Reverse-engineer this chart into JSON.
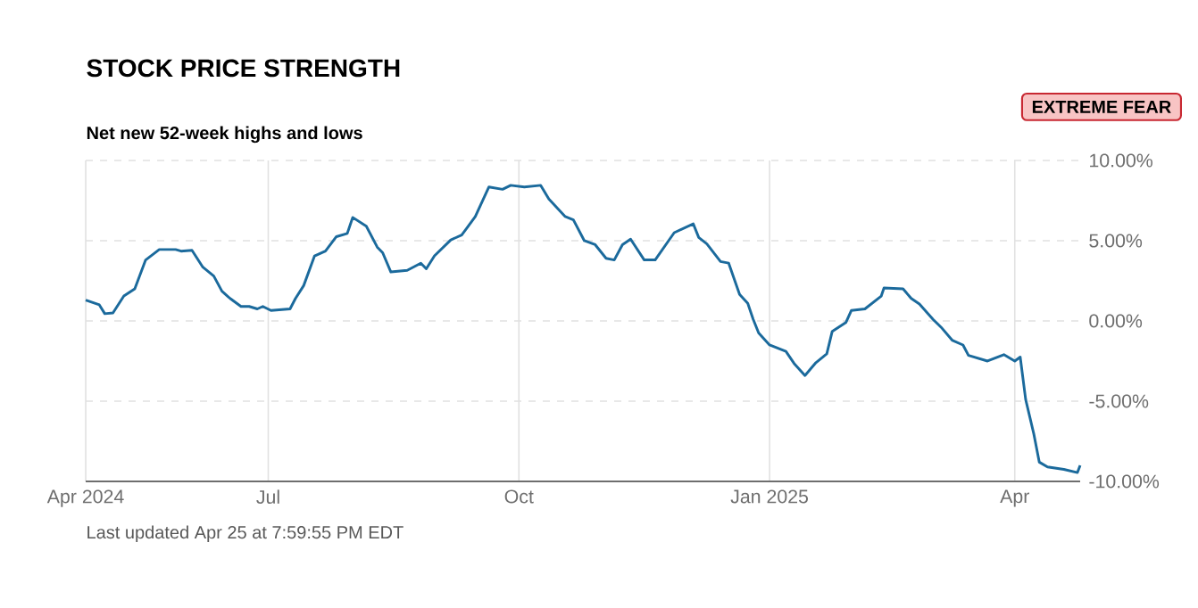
{
  "chart_data": {
    "type": "line",
    "title": "STOCK PRICE STRENGTH",
    "subtitle": "Net new 52-week highs and lows",
    "annotations": [
      "EXTREME FEAR",
      "Last updated Apr 25 at 7:59:55 PM EDT"
    ],
    "x": [
      "2024-04-25",
      "2024-04-30",
      "2024-05-02",
      "2024-05-05",
      "2024-05-09",
      "2024-05-13",
      "2024-05-17",
      "2024-05-22",
      "2024-05-28",
      "2024-05-30",
      "2024-06-03",
      "2024-06-07",
      "2024-06-11",
      "2024-06-14",
      "2024-06-17",
      "2024-06-21",
      "2024-06-24",
      "2024-06-27",
      "2024-06-29",
      "2024-07-02",
      "2024-07-09",
      "2024-07-11",
      "2024-07-14",
      "2024-07-18",
      "2024-07-22",
      "2024-07-26",
      "2024-07-30",
      "2024-08-01",
      "2024-08-06",
      "2024-08-10",
      "2024-08-12",
      "2024-08-15",
      "2024-08-21",
      "2024-08-26",
      "2024-08-28",
      "2024-08-31",
      "2024-09-06",
      "2024-09-10",
      "2024-09-15",
      "2024-09-20",
      "2024-09-25",
      "2024-09-28",
      "2024-10-03",
      "2024-10-09",
      "2024-10-12",
      "2024-10-18",
      "2024-10-21",
      "2024-10-25",
      "2024-10-29",
      "2024-11-02",
      "2024-11-05",
      "2024-11-08",
      "2024-11-11",
      "2024-11-16",
      "2024-11-20",
      "2024-11-27",
      "2024-12-04",
      "2024-12-06",
      "2024-12-09",
      "2024-12-14",
      "2024-12-17",
      "2024-12-21",
      "2024-12-24",
      "2024-12-26",
      "2024-12-28",
      "2025-01-01",
      "2025-01-07",
      "2025-01-10",
      "2025-01-14",
      "2025-01-18",
      "2025-01-22",
      "2025-01-24",
      "2025-01-29",
      "2025-01-31",
      "2025-02-05",
      "2025-02-11",
      "2025-02-12",
      "2025-02-19",
      "2025-02-22",
      "2025-02-25",
      "2025-03-02",
      "2025-03-05",
      "2025-03-09",
      "2025-03-13",
      "2025-03-15",
      "2025-03-22",
      "2025-03-28",
      "2025-04-01",
      "2025-04-03",
      "2025-04-05",
      "2025-04-08",
      "2025-04-10",
      "2025-04-13",
      "2025-04-19",
      "2025-04-24",
      "2025-04-25"
    ],
    "series": [
      {
        "color": "#1b6a9c",
        "values": [
          1.3,
          1.0,
          0.45,
          0.5,
          1.55,
          2.0,
          3.8,
          4.45,
          4.45,
          4.35,
          4.4,
          3.35,
          2.8,
          1.85,
          1.4,
          0.9,
          0.9,
          0.75,
          0.9,
          0.65,
          0.75,
          1.4,
          2.2,
          4.05,
          4.35,
          5.25,
          5.45,
          6.45,
          5.9,
          4.6,
          4.25,
          3.05,
          3.15,
          3.6,
          3.25,
          4.05,
          5.05,
          5.35,
          6.5,
          8.35,
          8.2,
          8.45,
          8.35,
          8.45,
          7.6,
          6.5,
          6.3,
          5.0,
          4.75,
          3.9,
          3.8,
          4.75,
          5.1,
          3.8,
          3.8,
          5.5,
          6.05,
          5.2,
          4.8,
          3.7,
          3.6,
          1.65,
          1.1,
          0.1,
          -0.75,
          -1.5,
          -1.9,
          -2.65,
          -3.4,
          -2.6,
          -2.05,
          -0.65,
          -0.1,
          0.65,
          0.75,
          1.55,
          2.05,
          2.0,
          1.4,
          1.05,
          0.1,
          -0.4,
          -1.2,
          -1.5,
          -2.15,
          -2.5,
          -2.1,
          -2.5,
          -2.25,
          -4.9,
          -7.05,
          -8.8,
          -9.1,
          -9.25,
          -9.45,
          -9.0
        ]
      }
    ],
    "xlim": [
      "2024-04-25",
      "2025-04-25"
    ],
    "xticks": [
      {
        "value": "2024-04-25",
        "label": "Apr 2024"
      },
      {
        "value": "2024-07-01",
        "label": "Jul"
      },
      {
        "value": "2024-10-01",
        "label": "Oct"
      },
      {
        "value": "2025-01-01",
        "label": "Jan 2025"
      },
      {
        "value": "2025-04-01",
        "label": "Apr"
      }
    ],
    "ylim": [
      -10,
      10
    ],
    "yticks": [
      {
        "value": 10,
        "label": "10.00%"
      },
      {
        "value": 5,
        "label": "5.00%"
      },
      {
        "value": 0,
        "label": "0.00%"
      },
      {
        "value": -5,
        "label": "-5.00%"
      },
      {
        "value": -10,
        "label": "-10.00%"
      }
    ],
    "grid": true
  }
}
